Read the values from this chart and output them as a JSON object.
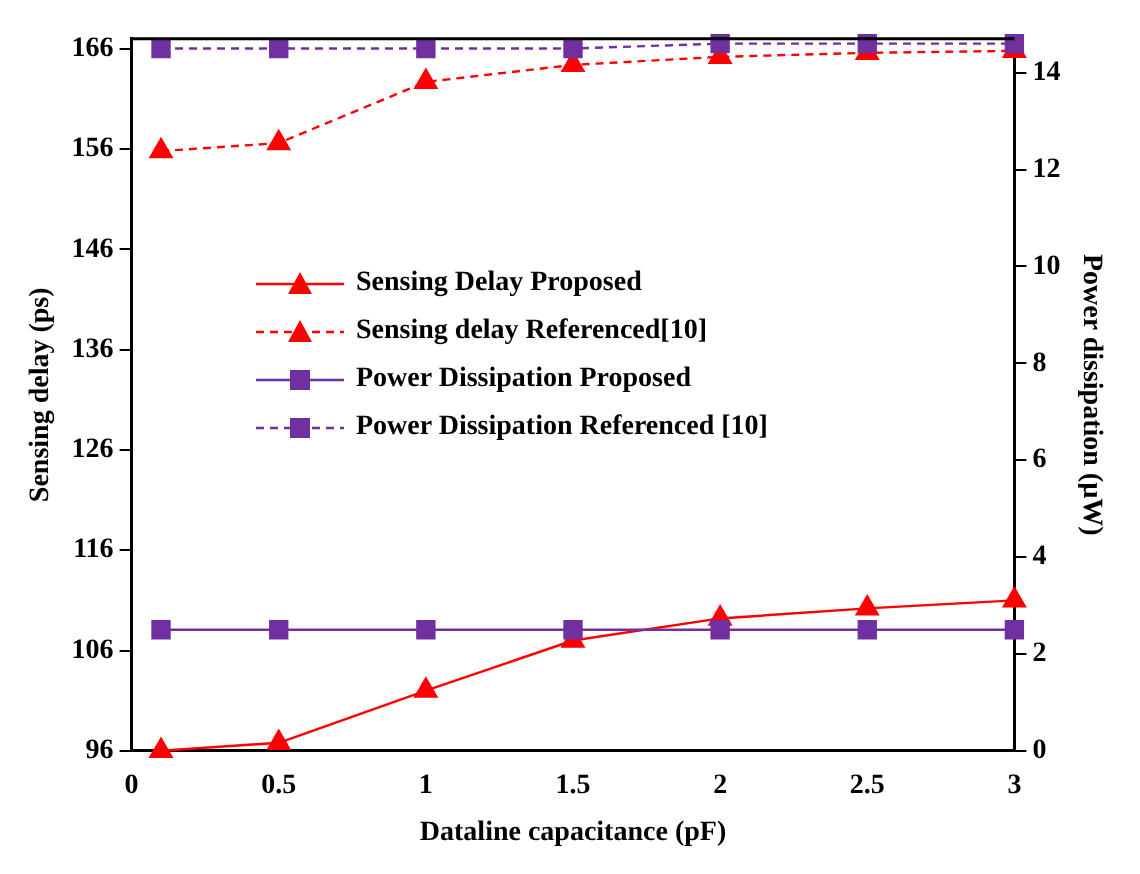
{
  "chart_data": {
    "type": "line",
    "xlabel": "Dataline capacitance (pF)",
    "ylabel": "Sensing delay (ps)",
    "y2label": "Power dissipation (µW)",
    "x": [
      0.1,
      0.5,
      1,
      1.5,
      2,
      2.5,
      3
    ],
    "series": [
      {
        "name": "Sensing Delay Proposed",
        "color": "#ff0000",
        "marker": "triangle",
        "line_style": "solid",
        "values": [
          96,
          96.8,
          102,
          107,
          109.2,
          110.2,
          111
        ]
      },
      {
        "name": "Sensing delay Referenced[10]",
        "color": "#ff0000",
        "marker": "triangle",
        "line_style": "dashed",
        "values": [
          155.8,
          156.6,
          162.7,
          164.4,
          165.2,
          165.6,
          165.8
        ]
      },
      {
        "name": "Power Dissipation Proposed",
        "color": "#7030a0",
        "marker": "square",
        "line_style": "solid",
        "axis": "y2",
        "values": [
          2.5,
          2.5,
          2.5,
          2.5,
          2.5,
          2.5,
          2.5
        ]
      },
      {
        "name": "Power Dissipation Referenced [10]",
        "color": "#7030a0",
        "marker": "square",
        "line_style": "dashed",
        "axis": "y2",
        "values": [
          14.5,
          14.5,
          14.5,
          14.5,
          14.6,
          14.6,
          14.6
        ]
      }
    ],
    "xlim": [
      0,
      3
    ],
    "xticks": [
      0,
      0.5,
      1,
      1.5,
      2,
      2.5,
      3
    ],
    "ylim": [
      96,
      167
    ],
    "yticks": [
      96,
      106,
      116,
      126,
      136,
      146,
      156,
      166
    ],
    "y2lim": [
      0,
      14.7
    ],
    "y2ticks": [
      0,
      2,
      4,
      6,
      8,
      10,
      12,
      14
    ],
    "grid": false,
    "legend": "left"
  }
}
